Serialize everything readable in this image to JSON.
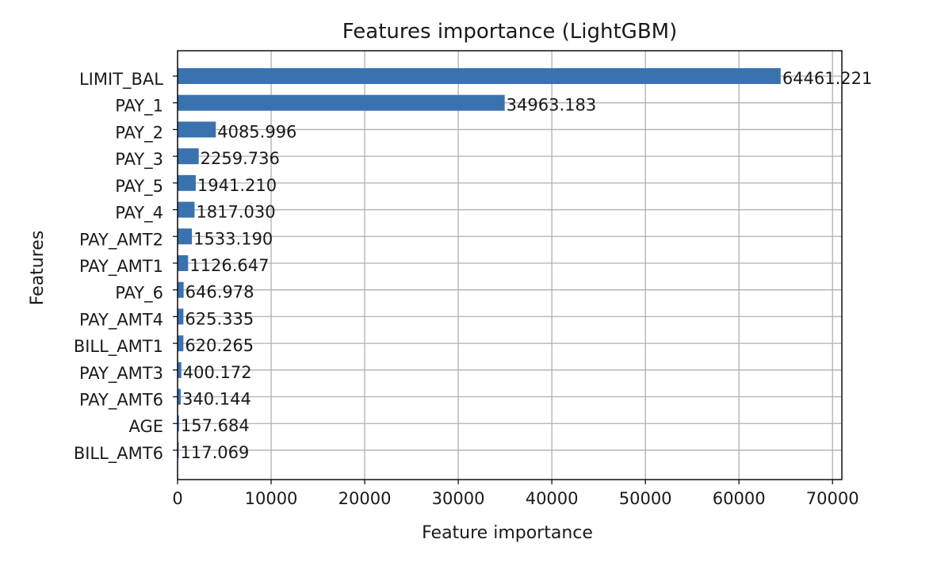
{
  "chart_data": {
    "type": "bar",
    "orientation": "horizontal",
    "title": "Features importance (LightGBM)",
    "xlabel": "Feature importance",
    "ylabel": "Features",
    "xlim": [
      0,
      71000
    ],
    "xticks": [
      0,
      10000,
      20000,
      30000,
      40000,
      50000,
      60000,
      70000
    ],
    "xtick_labels": [
      "0",
      "10000",
      "20000",
      "30000",
      "40000",
      "50000",
      "60000",
      "70000"
    ],
    "grid": true,
    "bar_color": "#3a72b0",
    "categories": [
      "LIMIT_BAL",
      "PAY_1",
      "PAY_2",
      "PAY_3",
      "PAY_5",
      "PAY_4",
      "PAY_AMT2",
      "PAY_AMT1",
      "PAY_6",
      "PAY_AMT4",
      "BILL_AMT1",
      "PAY_AMT3",
      "PAY_AMT6",
      "AGE",
      "BILL_AMT6"
    ],
    "values": [
      64461.221,
      34963.183,
      4085.996,
      2259.736,
      1941.21,
      1817.03,
      1533.19,
      1126.647,
      646.978,
      625.335,
      620.265,
      400.172,
      340.144,
      157.684,
      117.069
    ],
    "value_labels": [
      "64461.221",
      "34963.183",
      "4085.996",
      "2259.736",
      "1941.210",
      "1817.030",
      "1533.190",
      "1126.647",
      "646.978",
      "625.335",
      "620.265",
      "400.172",
      "340.144",
      "157.684",
      "117.069"
    ]
  }
}
